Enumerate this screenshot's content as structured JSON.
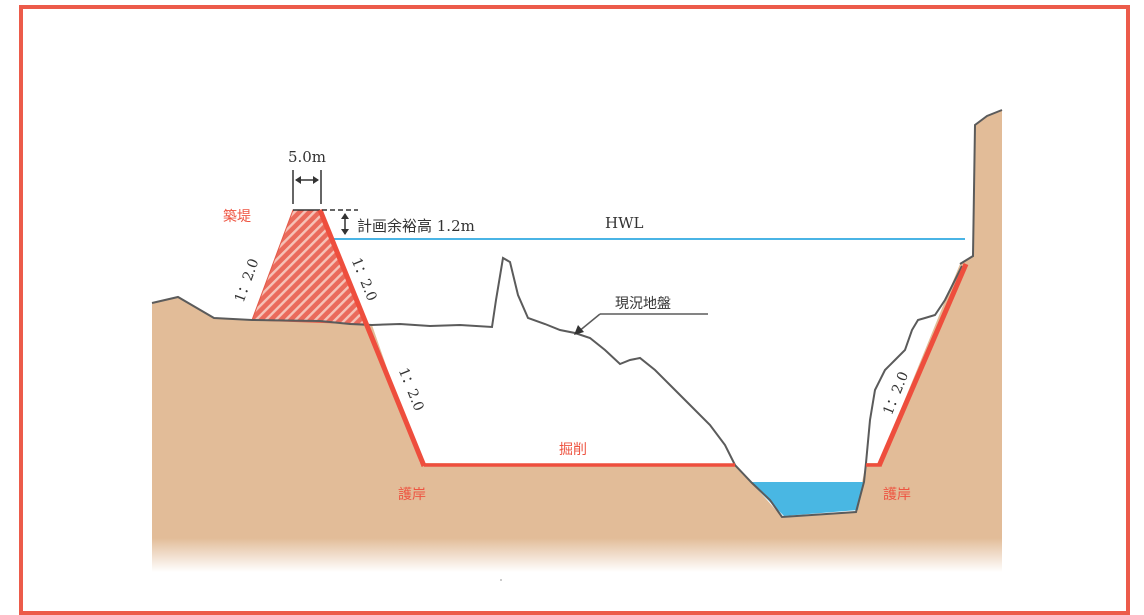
{
  "labels": {
    "crest_width": "5.0m",
    "embankment": "築堤",
    "freeboard": "計画余裕高 1.2m",
    "hwl": "HWL",
    "slope_embankment_left": "1：2.0",
    "slope_embankment_right": "1：2.0",
    "slope_revetment_left": "1：2.0",
    "slope_revetment_right": "1：2.0",
    "existing_ground": "現況地盤",
    "excavation": "掘削",
    "revetment_left": "護岸",
    "revetment_right": "護岸"
  },
  "colors": {
    "frame": "#ec5b4a",
    "ground": "#e2bc98",
    "ground_fade": "#f3e4d4",
    "embankment": "#ea6a5b",
    "revetment": "#ee4e3d",
    "water_line": "#4ab4e5",
    "water": "#49b7e3",
    "ground_line": "#5b5b5b",
    "text": "#333333",
    "accent_text": "#ee5441"
  }
}
